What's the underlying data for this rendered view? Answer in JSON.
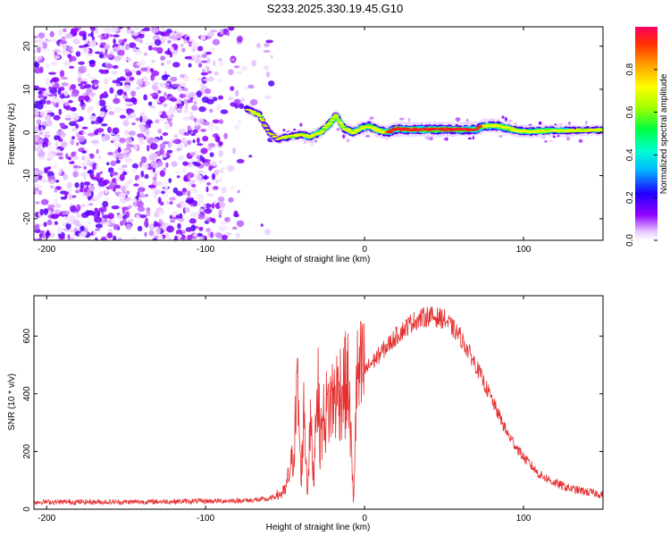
{
  "title": "S233.2025.330.19.45.G10",
  "colors": {
    "snr_line": "#e53030",
    "axis": "#000000",
    "background": "#ffffff"
  },
  "chart_data": [
    {
      "type": "heatmap",
      "xlabel": "Height of straight line (km)",
      "ylabel": "Frequency (Hz)",
      "xlim": [
        -208,
        150
      ],
      "ylim": [
        -25,
        24.5
      ],
      "xticks": [
        -200,
        -100,
        0,
        100
      ],
      "yticks": [
        -20,
        -10,
        0,
        10,
        20
      ],
      "colorbar": {
        "label": "Normalized spectral amplitude",
        "range": [
          0,
          1
        ],
        "ticks": [
          0.0,
          0.2,
          0.4,
          0.6,
          0.8
        ],
        "tick_labels": [
          "0.0",
          "0.2",
          "0.4",
          "0.6",
          "0.8"
        ]
      },
      "noise_region_x": [
        -208,
        -58
      ],
      "signal_track": {
        "x": [
          -74,
          -66,
          -60,
          -55,
          -48,
          -40,
          -34,
          -28,
          -22,
          -18,
          -13,
          -7,
          -2,
          3,
          8,
          14,
          20,
          28,
          40,
          55,
          70,
          75,
          82,
          88,
          95,
          102,
          110,
          118,
          125,
          135,
          150
        ],
        "freq": [
          5.5,
          4,
          0,
          -1.5,
          -1,
          -0.5,
          -1,
          0,
          2,
          4,
          1,
          0,
          1,
          1.5,
          0.5,
          0,
          0.8,
          0.7,
          0.7,
          0.7,
          0.7,
          1.5,
          1.6,
          1.2,
          0.5,
          0.2,
          0.3,
          0.5,
          0.4,
          0.5,
          0.6
        ],
        "amplitude": [
          0.35,
          0.4,
          0.3,
          0.35,
          0.4,
          0.45,
          0.55,
          0.6,
          0.55,
          0.5,
          0.6,
          0.65,
          0.7,
          0.75,
          0.8,
          0.85,
          0.95,
          0.95,
          0.95,
          0.95,
          0.95,
          0.85,
          0.8,
          0.75,
          0.65,
          0.6,
          0.55,
          0.5,
          0.5,
          0.45,
          0.4
        ]
      }
    },
    {
      "type": "line",
      "xlabel": "Height of straight line (km)",
      "ylabel": "SNR (10 * v/v)",
      "xlim": [
        -208,
        150
      ],
      "ylim": [
        0,
        740
      ],
      "xticks": [
        -200,
        -100,
        0,
        100
      ],
      "yticks": [
        0,
        200,
        400,
        600
      ],
      "series": [
        {
          "name": "SNR",
          "x": [
            -208,
            -150,
            -100,
            -75,
            -60,
            -50,
            -45,
            -42,
            -40,
            -38,
            -36,
            -34,
            -32,
            -30,
            -28,
            -25,
            -20,
            -15,
            -10,
            -7,
            -5,
            0,
            10,
            20,
            30,
            40,
            50,
            60,
            70,
            80,
            90,
            100,
            110,
            120,
            130,
            140,
            150
          ],
          "values": [
            25,
            25,
            28,
            30,
            35,
            60,
            180,
            420,
            100,
            360,
            60,
            300,
            100,
            470,
            250,
            330,
            380,
            420,
            430,
            20,
            440,
            480,
            540,
            600,
            650,
            670,
            660,
            600,
            500,
            380,
            260,
            180,
            120,
            90,
            70,
            60,
            50
          ]
        }
      ]
    }
  ]
}
